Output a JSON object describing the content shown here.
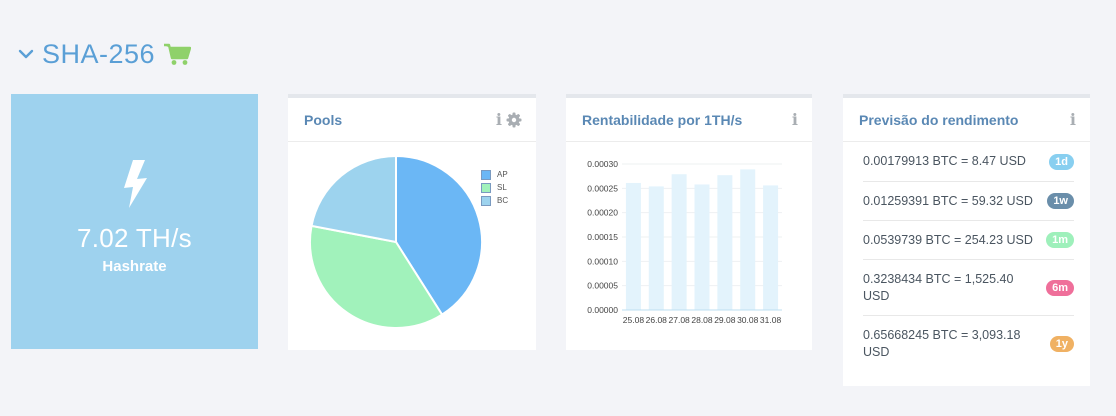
{
  "section": {
    "title": "SHA-256",
    "colors": {
      "title": "#5a9fd6",
      "cart": "#8fd16a"
    }
  },
  "hashrate": {
    "value": "7.02 TH/s",
    "label": "Hashrate",
    "color": "#9ed2ee"
  },
  "pools": {
    "title": "Pools",
    "tools": [
      "info-icon",
      "gear-icon"
    ],
    "chart_data": {
      "type": "pie",
      "slices": [
        {
          "label": "AP",
          "value": 41,
          "color": "#6bb7f5"
        },
        {
          "label": "SL",
          "value": 37,
          "color": "#a1f2bb"
        },
        {
          "label": "BC",
          "value": 22,
          "color": "#9dd3ee"
        }
      ],
      "legend": "top-right"
    }
  },
  "rentabilidade": {
    "title": "Rentabilidade por 1TH/s",
    "tools": [
      "info-icon"
    ],
    "chart_data": {
      "type": "bar",
      "categories": [
        "25.08",
        "26.08",
        "27.08",
        "28.08",
        "29.08",
        "30.08",
        "31.08"
      ],
      "values": [
        0.000261,
        0.000254,
        0.000279,
        0.000258,
        0.000277,
        0.000289,
        0.000256
      ],
      "y_ticks": [
        "0.00030",
        "0.00025",
        "0.00020",
        "0.00015",
        "0.00010",
        "0.00005",
        "0.00000"
      ],
      "ylim": [
        0,
        0.0003
      ],
      "grid": true,
      "colors": {
        "bar": "#e3f3fc",
        "axis": "#bcdff2"
      }
    }
  },
  "previsao": {
    "title": "Previsão do rendimento",
    "tools": [
      "info-icon"
    ],
    "items": [
      {
        "text": "0.00179913 BTC = 8.47 USD",
        "badge": "1d",
        "color": "#88cff0"
      },
      {
        "text": "0.01259391 BTC = 59.32 USD",
        "badge": "1w",
        "color": "#6a8eaa"
      },
      {
        "text": "0.0539739 BTC = 254.23 USD",
        "badge": "1m",
        "color": "#9ef0bb"
      },
      {
        "text": "0.3238434 BTC = 1,525.40 USD",
        "badge": "6m",
        "color": "#ef6f9a"
      },
      {
        "text": "0.65668245 BTC = 3,093.18 USD",
        "badge": "1y",
        "color": "#f0b163"
      }
    ]
  }
}
